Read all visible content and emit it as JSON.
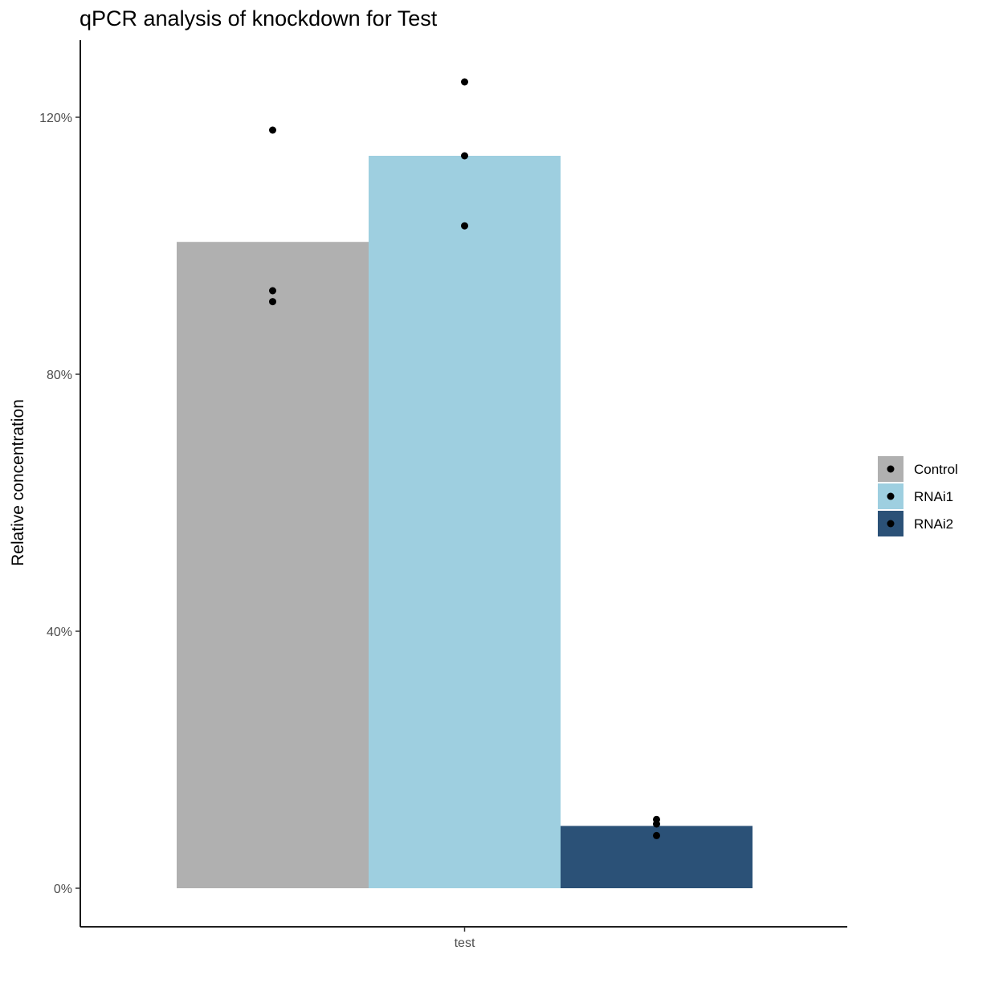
{
  "chart_data": {
    "type": "bar",
    "title": "qPCR analysis of knockdown for Test",
    "ylabel": "Relative concentration",
    "xlabel": "",
    "categories": [
      "test"
    ],
    "ylim": [
      -0.06,
      1.32
    ],
    "yticks": [
      0,
      0.4,
      0.8,
      1.2
    ],
    "ytick_labels": [
      "0%",
      "40%",
      "80%",
      "120%"
    ],
    "grid": false,
    "legend_position": "right",
    "series": [
      {
        "name": "Control",
        "color": "#b0b0b0",
        "value": 1.006,
        "points": [
          1.18,
          0.93,
          0.913
        ]
      },
      {
        "name": "RNAi1",
        "color": "#9ecfe0",
        "value": 1.14,
        "points": [
          1.255,
          1.14,
          1.031
        ]
      },
      {
        "name": "RNAi2",
        "color": "#2b5177",
        "value": 0.097,
        "points": [
          0.107,
          0.1,
          0.082
        ]
      }
    ]
  }
}
